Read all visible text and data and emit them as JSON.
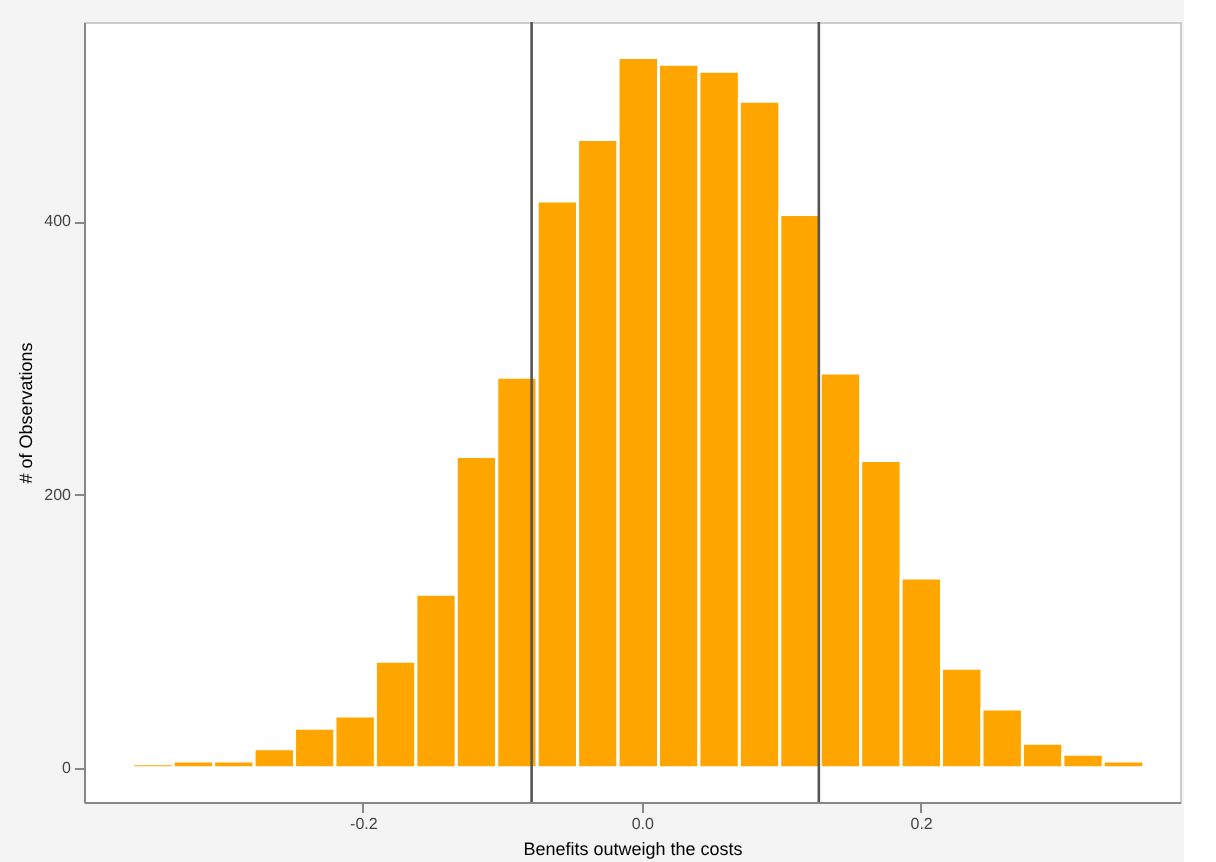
{
  "chart_data": {
    "type": "histogram",
    "xlabel": "Benefits outweigh the costs",
    "ylabel": "# of Observations",
    "bins": [
      -0.365,
      -0.336,
      -0.307,
      -0.278,
      -0.249,
      -0.22,
      -0.191,
      -0.162,
      -0.133,
      -0.104,
      -0.075,
      -0.046,
      -0.017,
      0.012,
      0.041,
      0.07,
      0.099,
      0.128,
      0.157,
      0.186,
      0.215,
      0.244,
      0.273,
      0.302,
      0.331,
      0.36
    ],
    "values": [
      3,
      5,
      5,
      14,
      29,
      38,
      78,
      127,
      228,
      286,
      415,
      460,
      520,
      515,
      510,
      488,
      405,
      289,
      225,
      139,
      73,
      43,
      18,
      10,
      5
    ],
    "color": "#ffa500",
    "xlim": [
      -0.4,
      0.386
    ],
    "ylim": [
      -25,
      546
    ],
    "xticks": [
      -0.2,
      {
        "value": 0,
        "label": "0.0"
      },
      0.2
    ],
    "yticks": [
      0,
      200,
      400
    ],
    "ref_lines": [
      {
        "axis": "x",
        "value": -0.079,
        "color": "#555555"
      },
      {
        "axis": "x",
        "value": 0.127,
        "color": "#555555"
      }
    ],
    "grid": false
  }
}
